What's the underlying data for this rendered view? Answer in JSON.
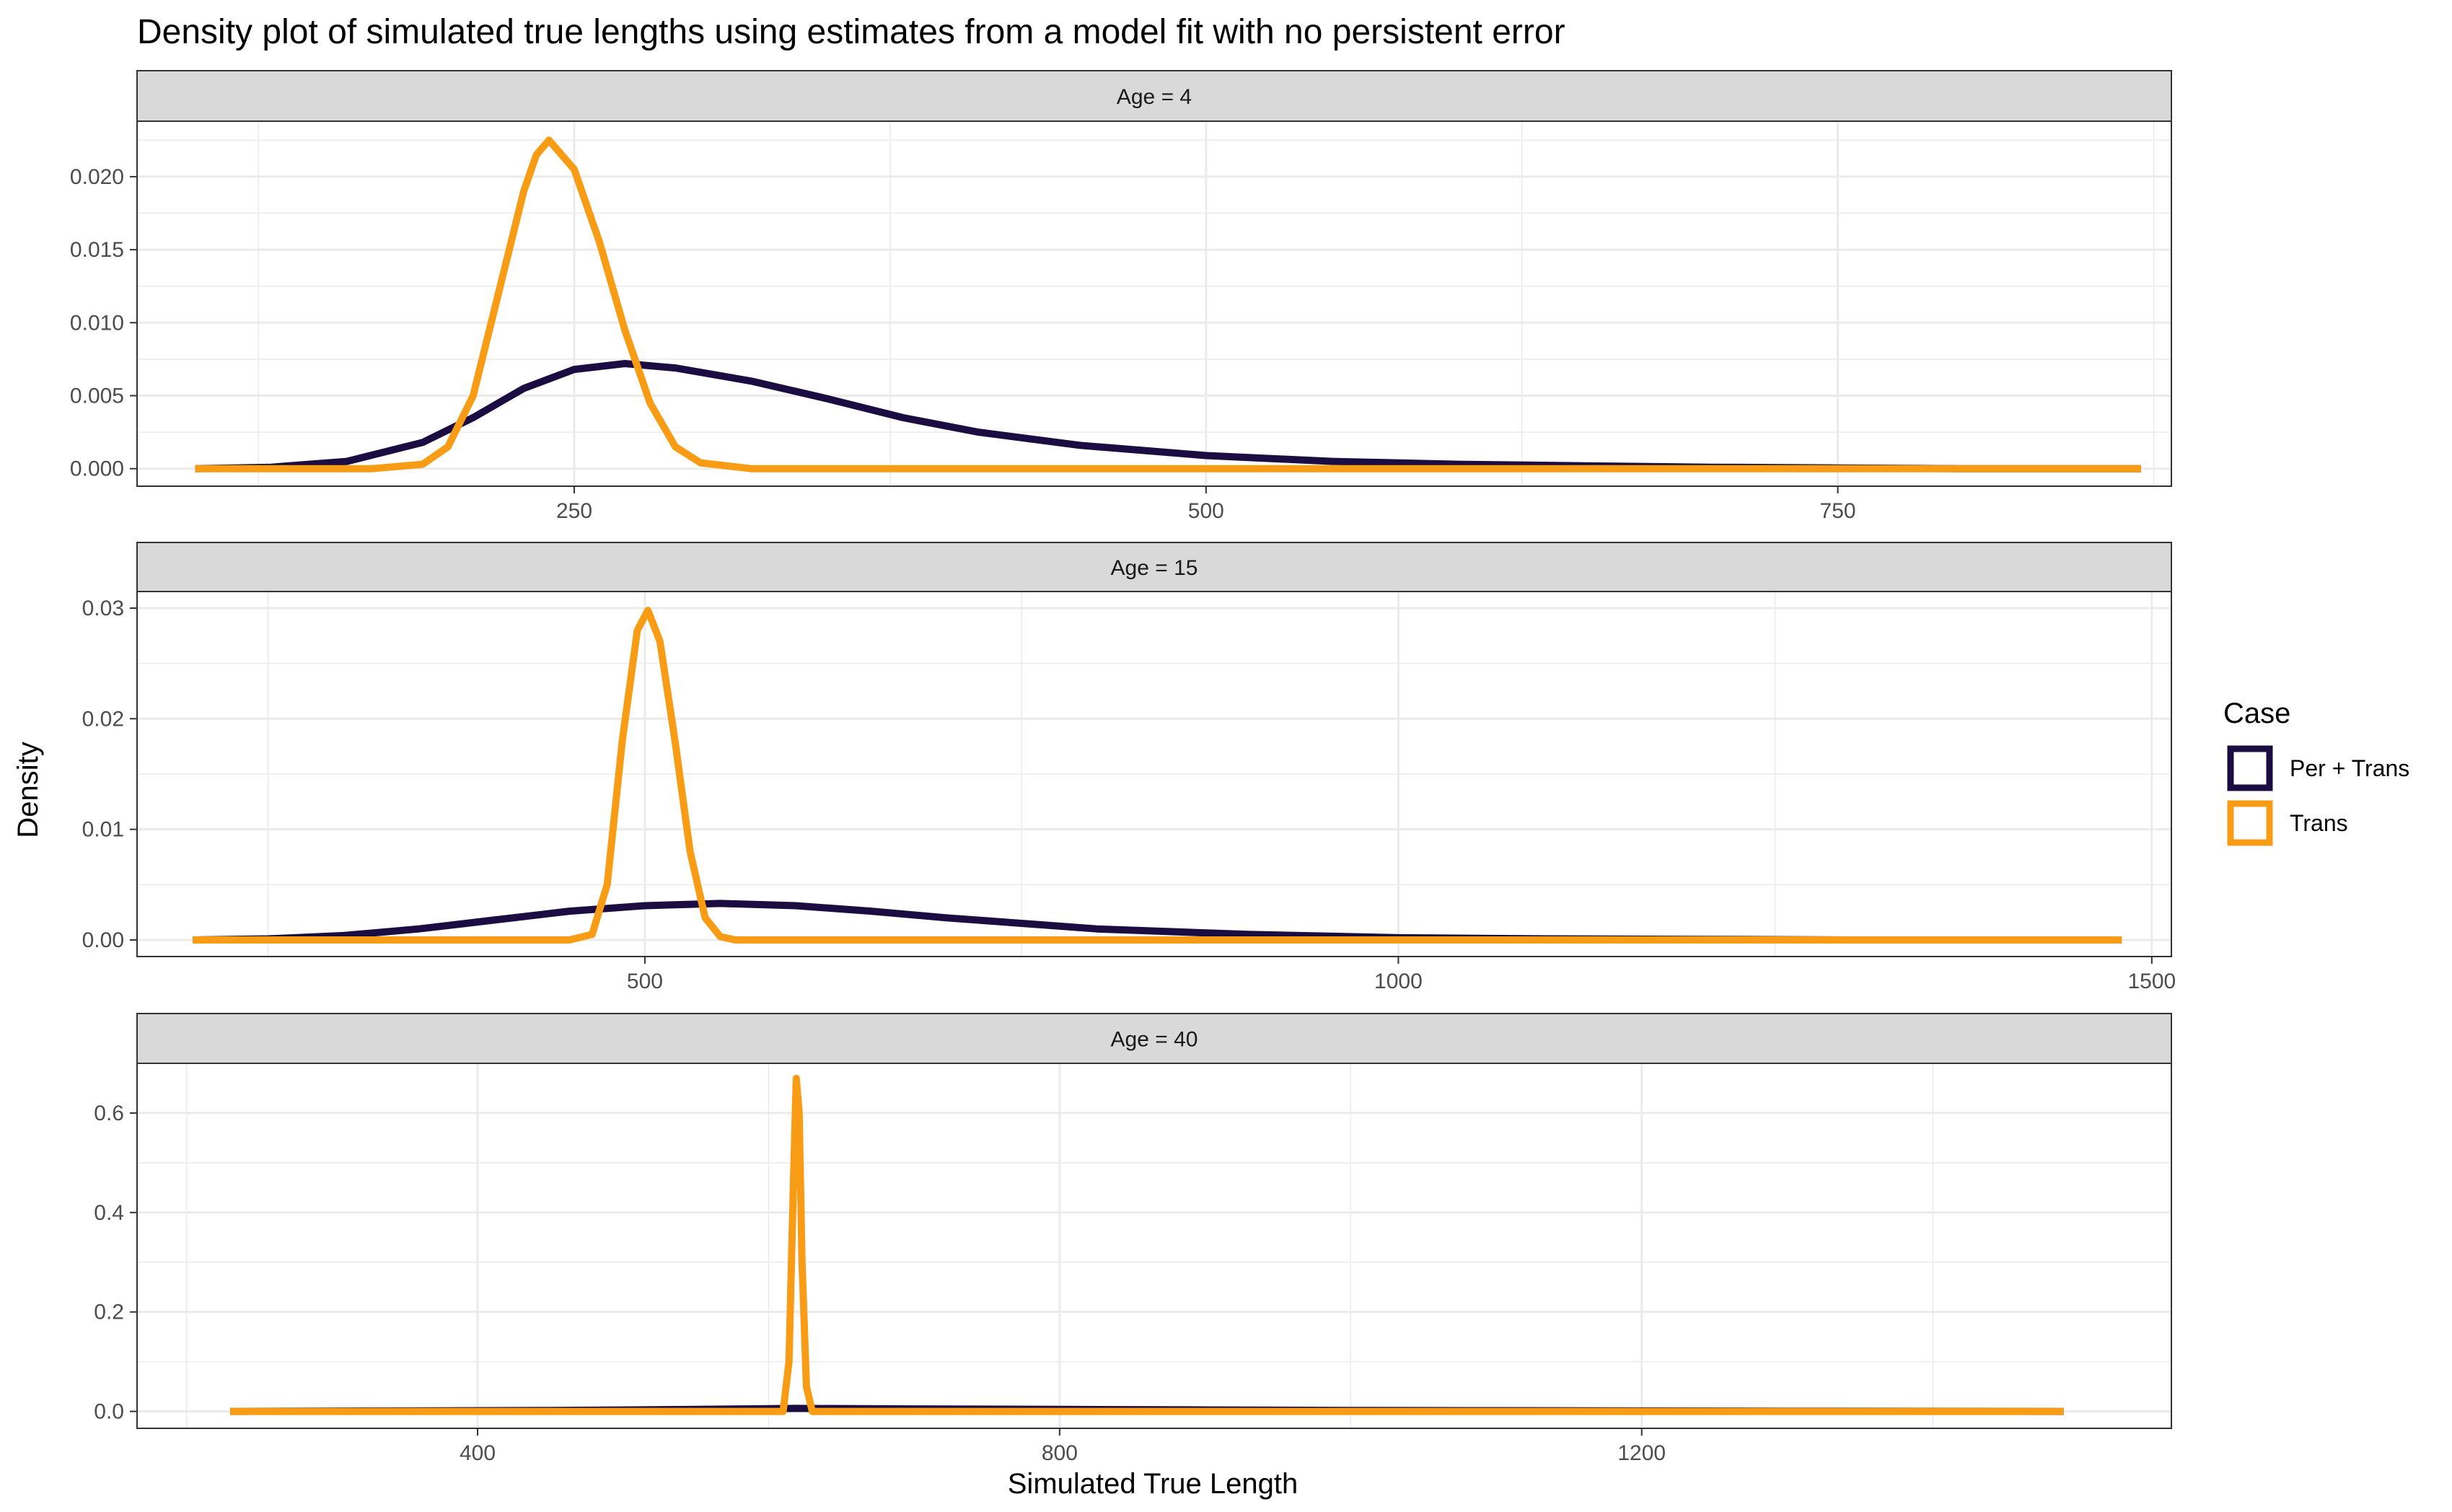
{
  "title": "Density plot of simulated true lengths using estimates from a model fit with no persistent error",
  "xlabel": "Simulated True Length",
  "ylabel": "Density",
  "legend": {
    "title": "Case",
    "entries": [
      {
        "label": "Per + Trans",
        "color": "#1b0c41"
      },
      {
        "label": "Trans",
        "color": "#f79c14"
      }
    ]
  },
  "colors": {
    "strip_background": "#d9d9d9",
    "panel_border": "#333333",
    "grid": "#ebebeb",
    "per_trans": "#1b0c41",
    "trans": "#f79c14"
  },
  "chart_data": [
    {
      "type": "line",
      "facet": "Age = 4",
      "xlim": [
        77,
        882
      ],
      "ylim": [
        -0.0012,
        0.0238
      ],
      "xticks": [
        250,
        500,
        750
      ],
      "xtick_labels": [
        "250",
        "500",
        "750"
      ],
      "yticks": [
        0,
        0.005,
        0.01,
        0.015,
        0.02
      ],
      "ytick_labels": [
        "0.000",
        "0.005",
        "0.010",
        "0.015",
        "0.020"
      ],
      "grid": true,
      "series": [
        {
          "name": "Per + Trans",
          "x": [
            100,
            130,
            160,
            190,
            210,
            230,
            250,
            270,
            290,
            320,
            350,
            380,
            410,
            450,
            500,
            550,
            600,
            650,
            700,
            750,
            800,
            870
          ],
          "y": [
            0.0,
            0.0001,
            0.0005,
            0.0018,
            0.0035,
            0.0055,
            0.0068,
            0.0072,
            0.0069,
            0.006,
            0.0048,
            0.0035,
            0.0025,
            0.0016,
            0.0009,
            0.0005,
            0.0003,
            0.0002,
            0.0001,
            5e-05,
            0.0,
            0.0
          ]
        },
        {
          "name": "Trans",
          "x": [
            100,
            170,
            190,
            200,
            210,
            220,
            230,
            235,
            240,
            250,
            260,
            270,
            280,
            290,
            300,
            320,
            350,
            400,
            500,
            600,
            700,
            870
          ],
          "y": [
            0.0,
            0.0,
            0.0003,
            0.0015,
            0.005,
            0.012,
            0.019,
            0.0215,
            0.0225,
            0.0205,
            0.0155,
            0.0095,
            0.0045,
            0.0015,
            0.0004,
            0.0,
            0.0,
            0.0,
            0.0,
            0.0,
            0.0,
            0.0
          ]
        }
      ]
    },
    {
      "type": "line",
      "facet": "Age = 15",
      "xlim": [
        163,
        1513
      ],
      "ylim": [
        -0.0015,
        0.0315
      ],
      "xticks": [
        500,
        1000,
        1500
      ],
      "xtick_labels": [
        "500",
        "1000",
        "1500"
      ],
      "yticks": [
        0,
        0.01,
        0.02,
        0.03
      ],
      "ytick_labels": [
        "0.00",
        "0.01",
        "0.02",
        "0.03"
      ],
      "grid": true,
      "series": [
        {
          "name": "Per + Trans",
          "x": [
            200,
            250,
            300,
            350,
            400,
            450,
            500,
            550,
            600,
            650,
            700,
            750,
            800,
            900,
            1000,
            1100,
            1200,
            1300,
            1400,
            1480
          ],
          "y": [
            0.0,
            0.0001,
            0.0004,
            0.001,
            0.0018,
            0.0026,
            0.0031,
            0.0033,
            0.0031,
            0.0026,
            0.002,
            0.0015,
            0.001,
            0.0005,
            0.0002,
            0.0001,
            5e-05,
            0.0,
            0.0,
            0.0
          ]
        },
        {
          "name": "Trans",
          "x": [
            200,
            400,
            450,
            465,
            475,
            485,
            495,
            502,
            510,
            520,
            530,
            540,
            550,
            560,
            600,
            800,
            1000,
            1480
          ],
          "y": [
            0.0,
            0.0,
            0.0,
            0.0005,
            0.005,
            0.018,
            0.028,
            0.0298,
            0.027,
            0.018,
            0.008,
            0.002,
            0.0003,
            0.0,
            0.0,
            0.0,
            0.0,
            0.0
          ]
        }
      ]
    },
    {
      "type": "line",
      "facet": "Age = 40",
      "xlim": [
        166,
        1564
      ],
      "ylim": [
        -0.034,
        0.7
      ],
      "xticks": [
        400,
        800,
        1200
      ],
      "xtick_labels": [
        "400",
        "800",
        "1200"
      ],
      "yticks": [
        0,
        0.2,
        0.4,
        0.6
      ],
      "ytick_labels": [
        "0.0",
        "0.2",
        "0.4",
        "0.6"
      ],
      "grid": true,
      "series": [
        {
          "name": "Per + Trans",
          "x": [
            230,
            350,
            450,
            550,
            620,
            700,
            800,
            900,
            1000,
            1100,
            1200,
            1300,
            1400,
            1490
          ],
          "y": [
            0.0,
            0.001,
            0.002,
            0.004,
            0.006,
            0.005,
            0.004,
            0.003,
            0.002,
            0.0015,
            0.001,
            0.0005,
            0.0002,
            0.0
          ]
        },
        {
          "name": "Trans",
          "x": [
            230,
            600,
            610,
            614,
            617,
            619,
            621,
            623,
            626,
            630,
            640,
            800,
            1000,
            1490
          ],
          "y": [
            0.0,
            0.0,
            0.0,
            0.1,
            0.45,
            0.67,
            0.6,
            0.3,
            0.05,
            0.0,
            0.0,
            0.0,
            0.0,
            0.0
          ]
        }
      ]
    }
  ]
}
